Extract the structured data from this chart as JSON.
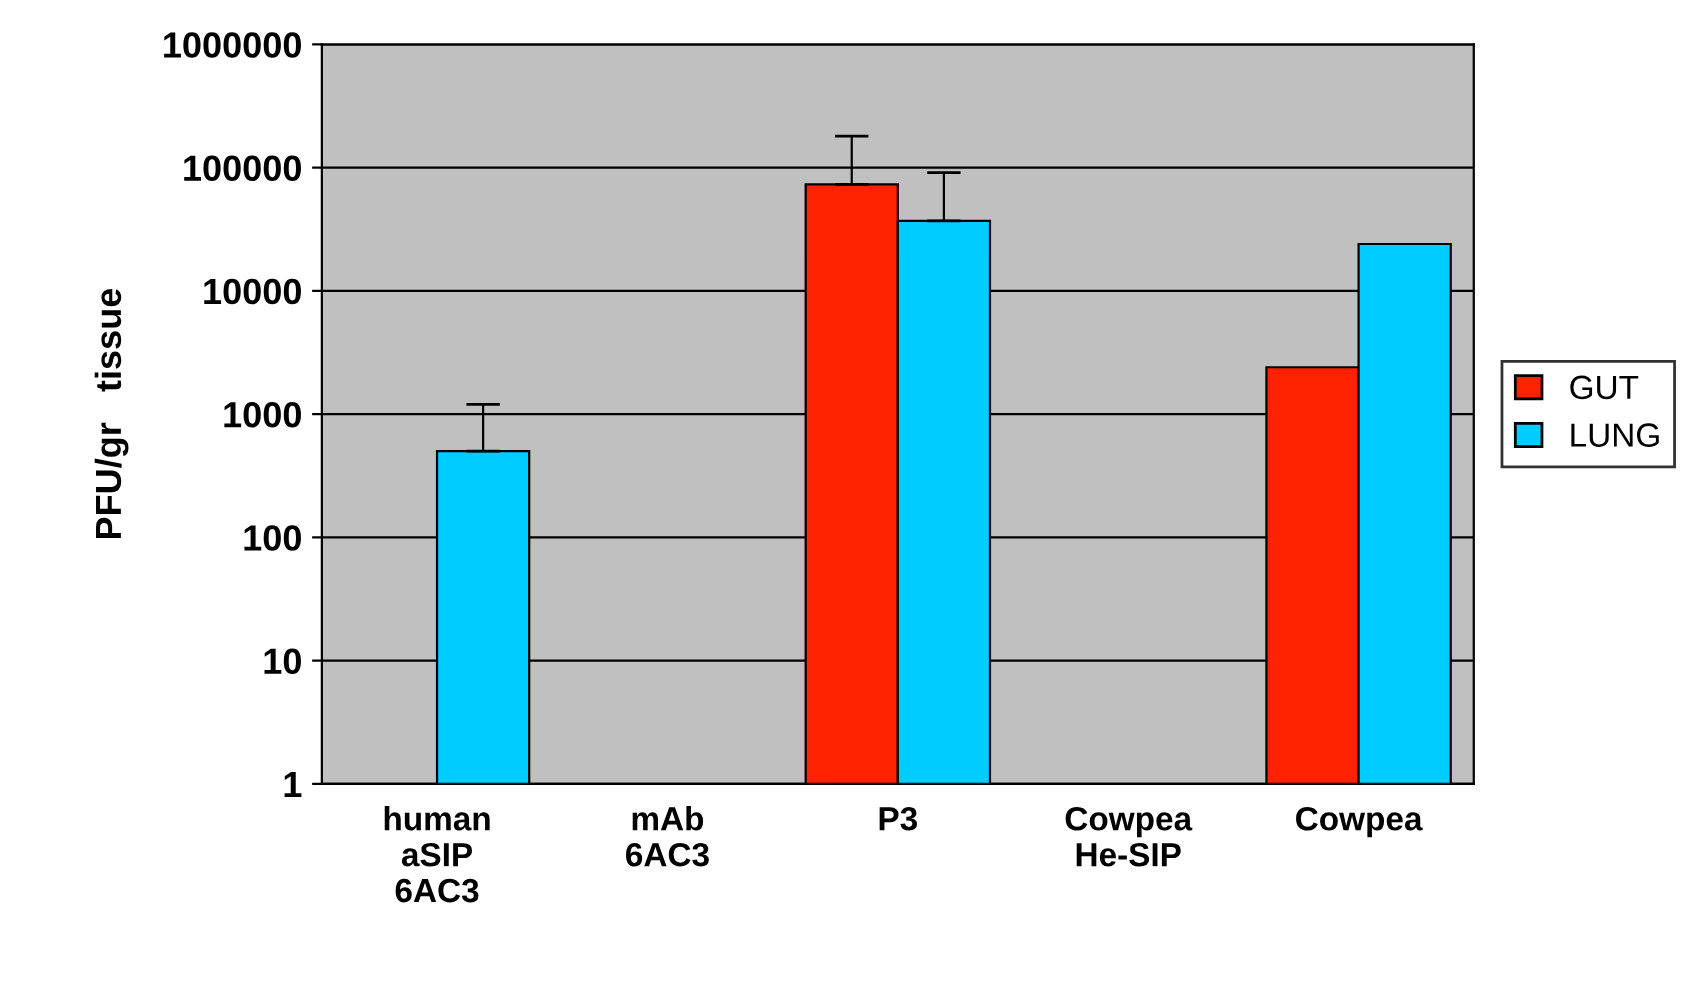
{
  "chart_data": {
    "type": "bar",
    "ylabel": "PFU/gr   tissue",
    "categories": [
      "human\naSIP\n6AC3",
      "mAb\n6AC3",
      "P3",
      "Cowpea\nHe-SIP",
      "Cowpea"
    ],
    "series": [
      {
        "name": "GUT",
        "color": "#ff2200",
        "values": [
          null,
          null,
          73000,
          null,
          2400
        ],
        "errors": [
          null,
          null,
          [
            73000,
            180000
          ],
          null,
          null
        ]
      },
      {
        "name": "LUNG",
        "color": "#00ccff",
        "values": [
          500,
          null,
          37000,
          null,
          24000
        ],
        "errors": [
          [
            500,
            1200
          ],
          null,
          [
            37000,
            91000
          ],
          null,
          null
        ]
      }
    ],
    "log": "y",
    "ylim": [
      1,
      1000000
    ],
    "yticks": [
      1,
      10,
      100,
      1000,
      10000,
      100000,
      1000000
    ],
    "grid": "y",
    "legend": "right"
  }
}
